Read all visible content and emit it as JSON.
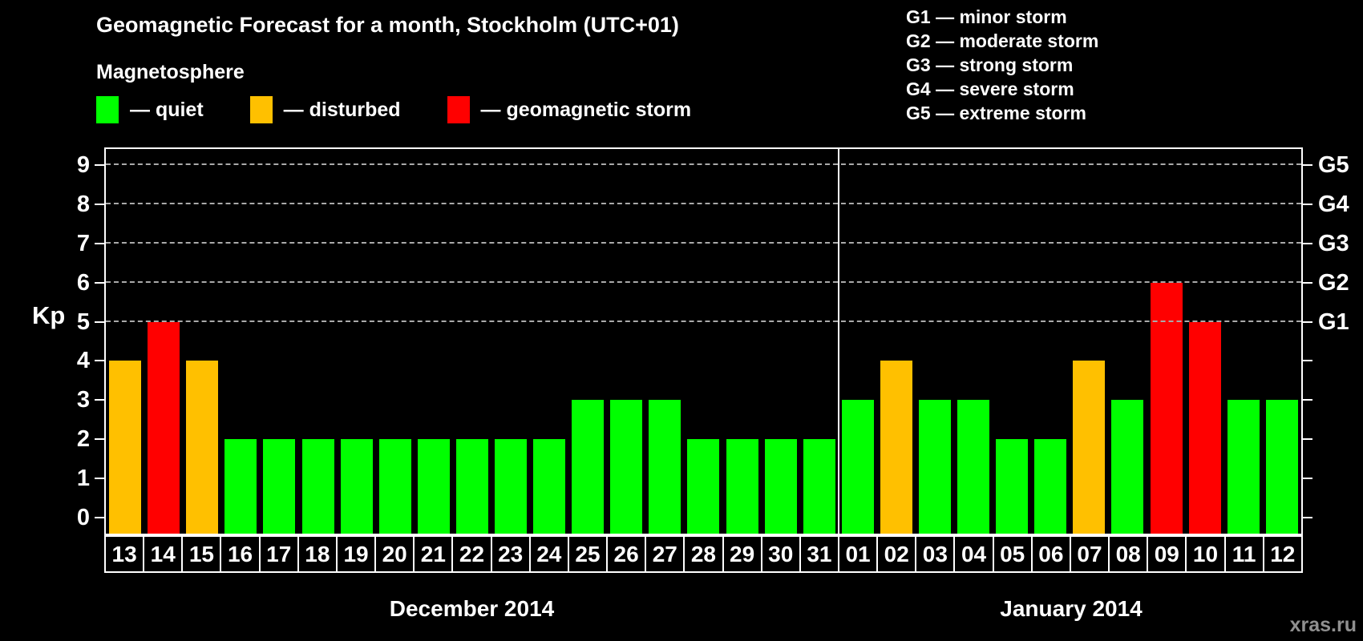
{
  "subtitle": "Magnetosphere",
  "watermark": "xras.ru",
  "legend": {
    "items": [
      {
        "label": "— quiet",
        "state": "quiet"
      },
      {
        "label": "— disturbed",
        "state": "disturbed"
      },
      {
        "label": "— geomagnetic storm",
        "state": "storm"
      }
    ]
  },
  "g_legend": {
    "items": [
      "G1 — minor storm",
      "G2 — moderate storm",
      "G3 — strong storm",
      "G4 — severe storm",
      "G5 — extreme storm"
    ]
  },
  "axis": {
    "y_label": "Kp",
    "y_ticks": [
      0,
      1,
      2,
      3,
      4,
      5,
      6,
      7,
      8,
      9
    ],
    "g_labels": [
      {
        "label": "G1",
        "kp": 5
      },
      {
        "label": "G2",
        "kp": 6
      },
      {
        "label": "G3",
        "kp": 7
      },
      {
        "label": "G4",
        "kp": 8
      },
      {
        "label": "G5",
        "kp": 9
      }
    ]
  },
  "colors": {
    "quiet": "#00FF00",
    "disturbed": "#FFC000",
    "storm": "#FF0000",
    "grid": "#AAAAAA",
    "axis": "#FFFFFF",
    "watermark": "#909090"
  },
  "chart_data": {
    "type": "bar",
    "title": "Geomagnetic Forecast for a month, Stockholm (UTC+01)",
    "ylabel": "Kp",
    "ylim": [
      -0.4,
      9.4
    ],
    "grid": "dashed horizontal at Kp 5-9 only",
    "legend_position": "top",
    "gridlines_kp": [
      5,
      6,
      7,
      8,
      9
    ],
    "sections": [
      {
        "label": "December 2014",
        "days": [
          {
            "day": "13",
            "kp": 4,
            "state": "disturbed"
          },
          {
            "day": "14",
            "kp": 5,
            "state": "storm"
          },
          {
            "day": "15",
            "kp": 4,
            "state": "disturbed"
          },
          {
            "day": "16",
            "kp": 2,
            "state": "quiet"
          },
          {
            "day": "17",
            "kp": 2,
            "state": "quiet"
          },
          {
            "day": "18",
            "kp": 2,
            "state": "quiet"
          },
          {
            "day": "19",
            "kp": 2,
            "state": "quiet"
          },
          {
            "day": "20",
            "kp": 2,
            "state": "quiet"
          },
          {
            "day": "21",
            "kp": 2,
            "state": "quiet"
          },
          {
            "day": "22",
            "kp": 2,
            "state": "quiet"
          },
          {
            "day": "23",
            "kp": 2,
            "state": "quiet"
          },
          {
            "day": "24",
            "kp": 2,
            "state": "quiet"
          },
          {
            "day": "25",
            "kp": 3,
            "state": "quiet"
          },
          {
            "day": "26",
            "kp": 3,
            "state": "quiet"
          },
          {
            "day": "27",
            "kp": 3,
            "state": "quiet"
          },
          {
            "day": "28",
            "kp": 2,
            "state": "quiet"
          },
          {
            "day": "29",
            "kp": 2,
            "state": "quiet"
          },
          {
            "day": "30",
            "kp": 2,
            "state": "quiet"
          },
          {
            "day": "31",
            "kp": 2,
            "state": "quiet"
          }
        ]
      },
      {
        "label": "January 2014",
        "days": [
          {
            "day": "01",
            "kp": 3,
            "state": "quiet"
          },
          {
            "day": "02",
            "kp": 4,
            "state": "disturbed"
          },
          {
            "day": "03",
            "kp": 3,
            "state": "quiet"
          },
          {
            "day": "04",
            "kp": 3,
            "state": "quiet"
          },
          {
            "day": "05",
            "kp": 2,
            "state": "quiet"
          },
          {
            "day": "06",
            "kp": 2,
            "state": "quiet"
          },
          {
            "day": "07",
            "kp": 4,
            "state": "disturbed"
          },
          {
            "day": "08",
            "kp": 3,
            "state": "quiet"
          },
          {
            "day": "09",
            "kp": 6,
            "state": "storm"
          },
          {
            "day": "10",
            "kp": 5,
            "state": "storm"
          },
          {
            "day": "11",
            "kp": 3,
            "state": "quiet"
          },
          {
            "day": "12",
            "kp": 3,
            "state": "quiet"
          }
        ]
      }
    ]
  }
}
